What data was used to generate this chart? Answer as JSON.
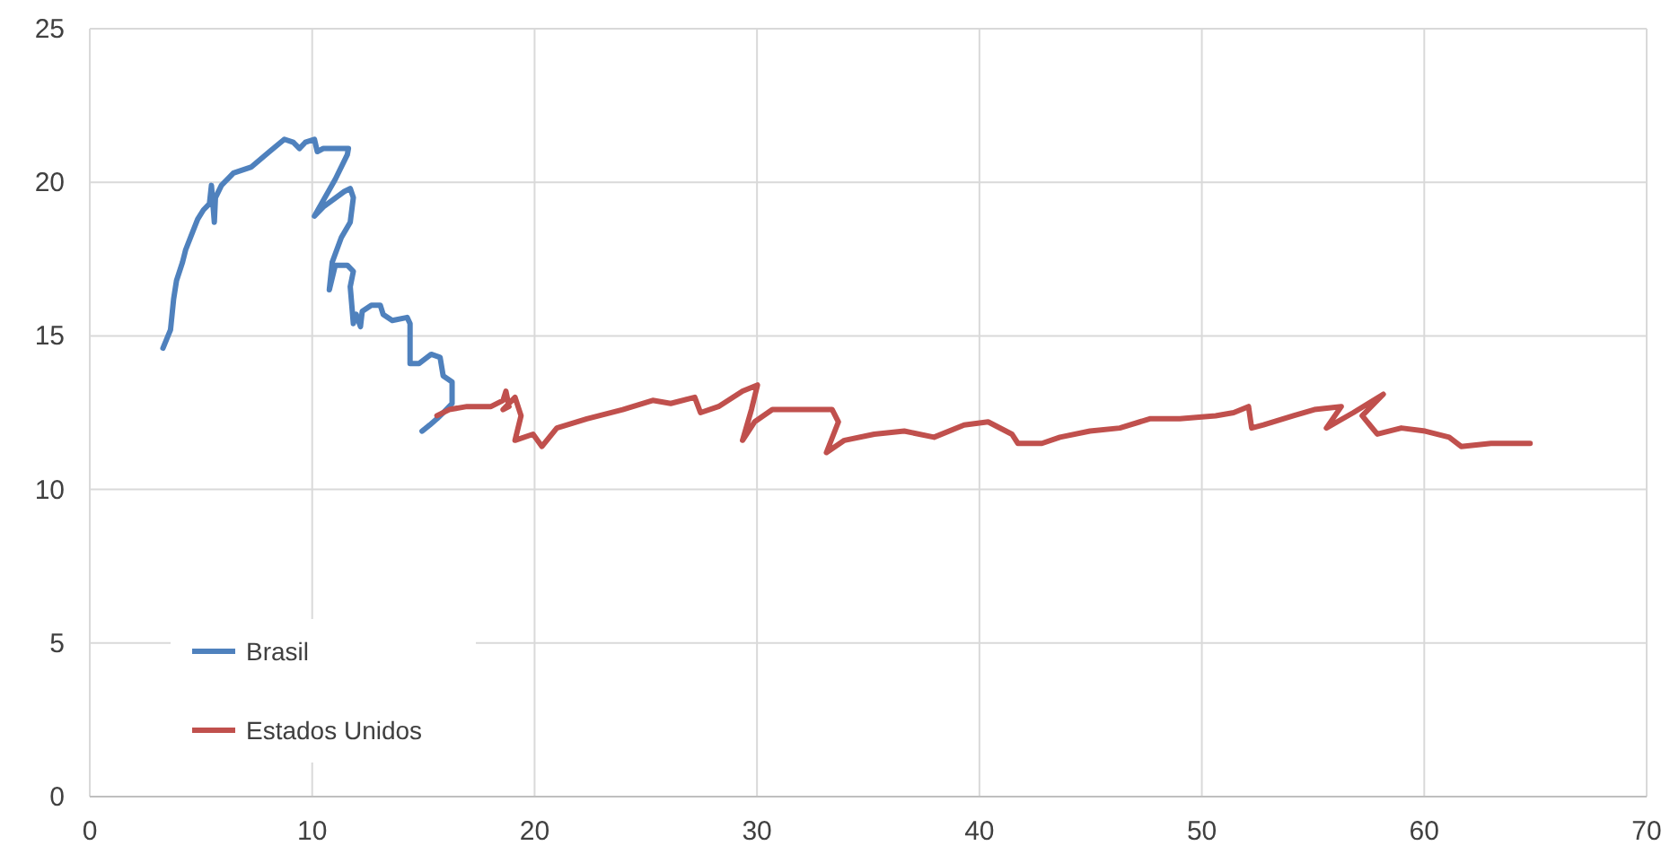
{
  "chart_data": {
    "type": "line",
    "xlim": [
      0,
      70
    ],
    "xticks": [
      0,
      10,
      20,
      30,
      40,
      50,
      60,
      70
    ],
    "ylim": [
      0,
      25
    ],
    "yticks": [
      0,
      5,
      10,
      15,
      20,
      25
    ],
    "grid": true,
    "legend": "bottom left",
    "marker": "none",
    "line_style": "solid",
    "series": [
      {
        "name": "Brasil",
        "color": "#4f81bd",
        "x": [
          3.29,
          3.63,
          3.77,
          3.9,
          4.17,
          4.31,
          4.58,
          4.85,
          5.11,
          5.38,
          5.47,
          5.6,
          5.65,
          5.92,
          6.46,
          7.27,
          8.08,
          8.75,
          9.15,
          9.43,
          9.69,
          10.1,
          10.23,
          10.5,
          11.04,
          11.63,
          11.58,
          11.04,
          10.1,
          10.5,
          11.44,
          11.71,
          11.85,
          11.71,
          11.31,
          10.9,
          10.77,
          11.04,
          11.58,
          11.85,
          11.71,
          11.85,
          11.98,
          12.17,
          12.25,
          12.66,
          13.06,
          13.19,
          13.6,
          14.27,
          14.4,
          14.4,
          14.81,
          15.35,
          15.75,
          15.89,
          16.29,
          16.29,
          15.89,
          15.61,
          15.29,
          14.94
        ],
        "values": [
          14.6,
          15.2,
          16.2,
          16.8,
          17.4,
          17.8,
          18.3,
          18.8,
          19.1,
          19.3,
          19.9,
          18.7,
          19.5,
          19.9,
          20.3,
          20.5,
          21,
          21.4,
          21.3,
          21.1,
          21.3,
          21.4,
          21,
          21.1,
          21.1,
          21.1,
          20.9,
          20.1,
          18.9,
          19.2,
          19.7,
          19.8,
          19.5,
          18.7,
          18.2,
          17.4,
          16.5,
          17.3,
          17.3,
          17.1,
          16.6,
          15.4,
          15.7,
          15.3,
          15.8,
          16,
          16,
          15.7,
          15.5,
          15.6,
          15.4,
          14.1,
          14.1,
          14.4,
          14.3,
          13.7,
          13.5,
          12.8,
          12.5,
          12.3,
          12.1,
          11.9
        ]
      },
      {
        "name": "Estados Unidos",
        "color": "#c0504d",
        "x": [
          15.61,
          16.16,
          16.96,
          18.04,
          18.58,
          18.71,
          18.85,
          18.58,
          19.12,
          19.39,
          19.12,
          19.93,
          20.33,
          21,
          22.35,
          23.96,
          25.31,
          26.12,
          27.2,
          27.46,
          28.27,
          29.35,
          30.02,
          29.75,
          29.35,
          29.89,
          30.69,
          32.04,
          33.38,
          33.66,
          33.12,
          33.93,
          35.27,
          36.62,
          37.96,
          39.31,
          40.39,
          41.46,
          41.73,
          42.81,
          43.62,
          44.97,
          46.31,
          47.66,
          49.01,
          50.62,
          51.43,
          52.1,
          52.24,
          52.77,
          54.12,
          55.06,
          56.27,
          55.6,
          56.81,
          58.16,
          57.21,
          57.89,
          58.97,
          60.04,
          61.12,
          61.66,
          63,
          64.76
        ],
        "values": [
          12.4,
          12.6,
          12.7,
          12.7,
          12.9,
          13.2,
          12.7,
          12.6,
          13,
          12.4,
          11.6,
          11.8,
          11.4,
          12,
          12.3,
          12.6,
          12.9,
          12.8,
          13,
          12.5,
          12.7,
          13.2,
          13.4,
          12.6,
          11.6,
          12.2,
          12.6,
          12.6,
          12.6,
          12.2,
          11.2,
          11.6,
          11.8,
          11.9,
          11.7,
          12.1,
          12.2,
          11.8,
          11.5,
          11.5,
          11.7,
          11.9,
          12,
          12.3,
          12.3,
          12.4,
          12.5,
          12.7,
          12,
          12.1,
          12.4,
          12.6,
          12.7,
          12,
          12.5,
          13.1,
          12.4,
          11.8,
          12,
          11.9,
          11.7,
          11.4,
          11.5,
          11.5
        ]
      }
    ]
  }
}
